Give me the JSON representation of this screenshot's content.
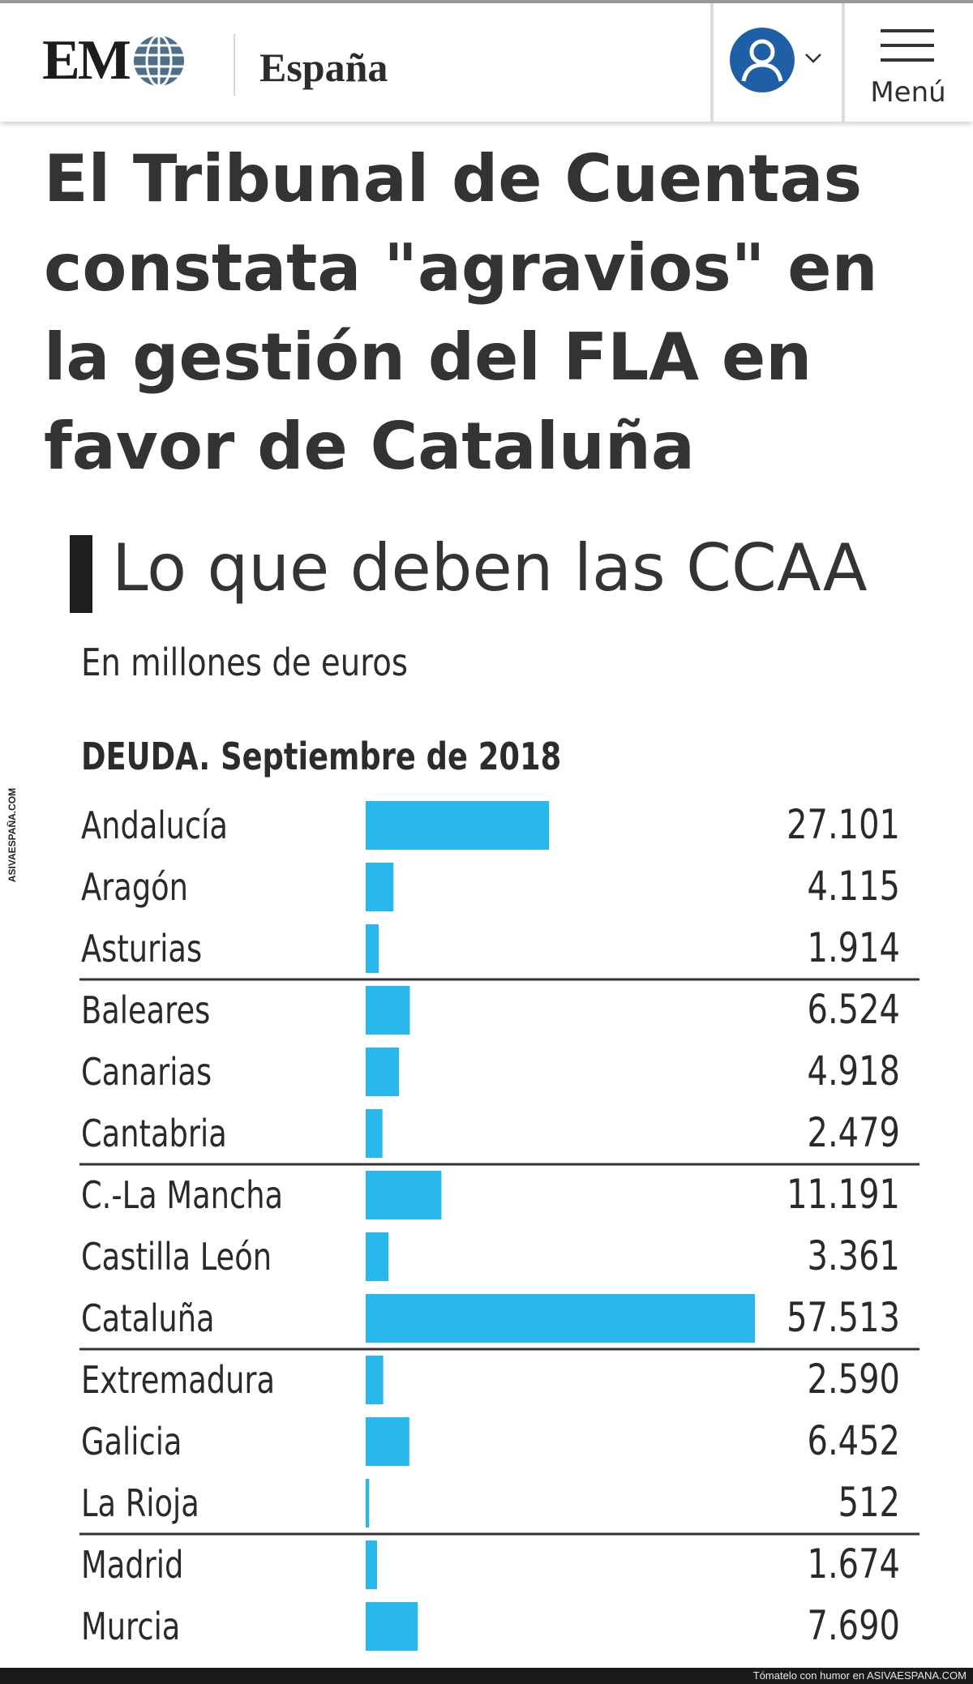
{
  "header": {
    "logo_text": "EM",
    "section": "España",
    "menu_label": "Menú"
  },
  "article": {
    "headline": "El Tribunal de Cuentas constata \"agravios\" en la gestión del FLA en favor de Cataluña"
  },
  "colors": {
    "bar": "#29b8ec",
    "avatar": "#1e5fa6",
    "globe": "#4e6f8a"
  },
  "chart_data": {
    "type": "bar",
    "orientation": "horizontal",
    "title": "Lo que deben las CCAA",
    "subtitle": "En millones de euros",
    "series_label": "DEUDA. Septiembre de 2018",
    "categories": [
      "Andalucía",
      "Aragón",
      "Asturias",
      "Baleares",
      "Canarias",
      "Cantabria",
      "C.-La Mancha",
      "Castilla León",
      "Cataluña",
      "Extremadura",
      "Galicia",
      "La Rioja",
      "Madrid",
      "Murcia"
    ],
    "values": [
      27101,
      4115,
      1914,
      6524,
      4918,
      2479,
      11191,
      3361,
      57513,
      2590,
      6452,
      512,
      1674,
      7690
    ],
    "value_labels": [
      "27.101",
      "4.115",
      "1.914",
      "6.524",
      "4.918",
      "2.479",
      "11.191",
      "3.361",
      "57.513",
      "2.590",
      "6.452",
      "512",
      "1.674",
      "7.690"
    ],
    "xlim": [
      0,
      57513
    ],
    "group_separators_after": [
      2,
      5,
      8,
      11
    ]
  },
  "watermark": "ASIVAESPAÑA.COM",
  "footer": {
    "text": "Tómatelo con humor en ASIVAESPANA.COM"
  }
}
